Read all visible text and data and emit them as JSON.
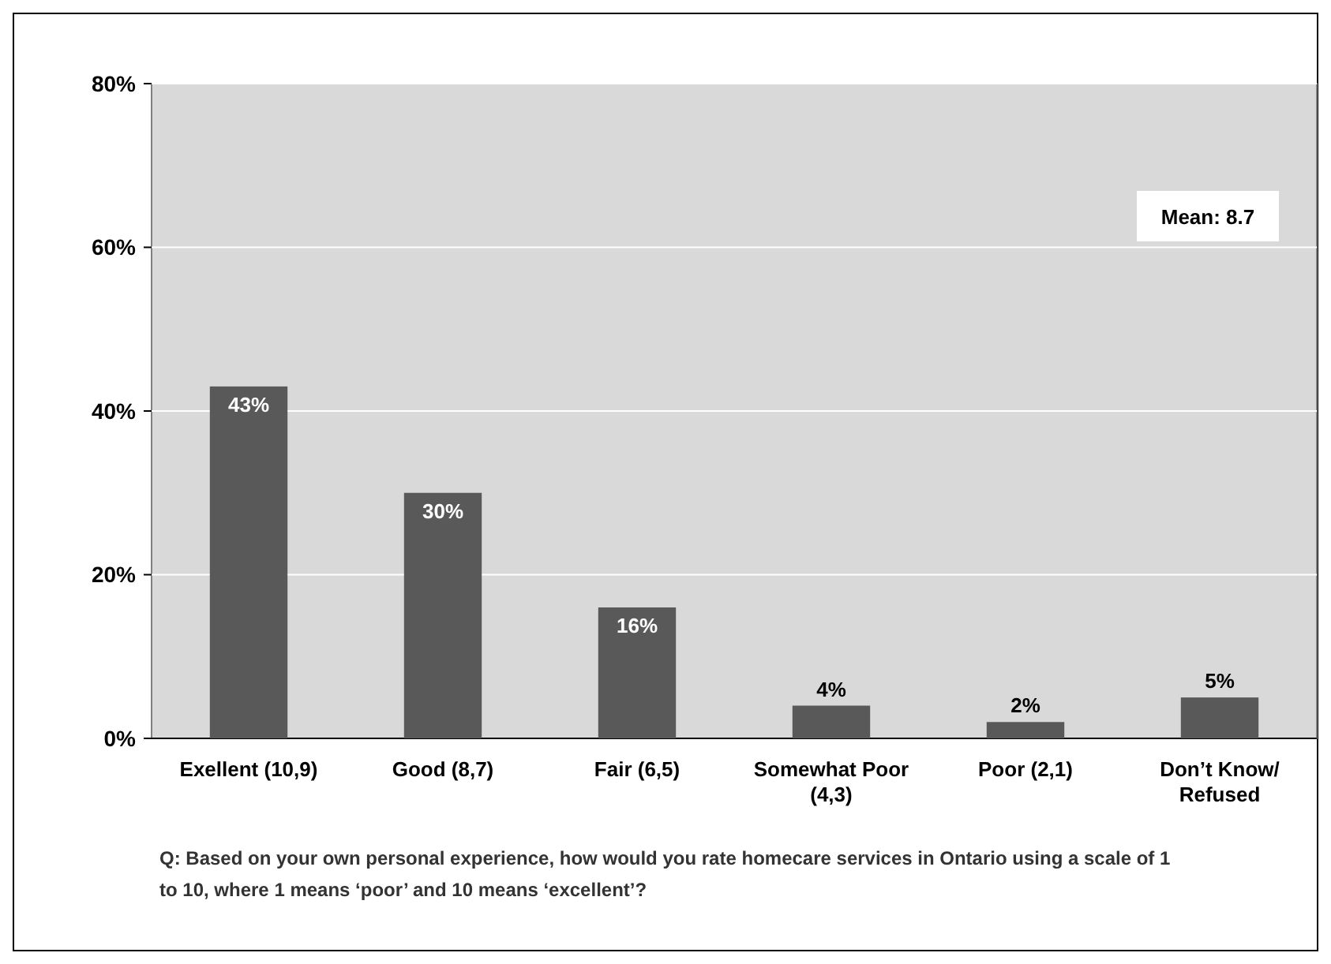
{
  "chart_data": {
    "type": "bar",
    "categories": [
      "Exellent (10,9)",
      "Good (8,7)",
      "Fair (6,5)",
      "Somewhat Poor (4,3)",
      "Poor (2,1)",
      "Don’t Know/ Refused"
    ],
    "values": [
      43,
      30,
      16,
      4,
      2,
      5
    ],
    "color": "#595959",
    "ylim": [
      0,
      80
    ],
    "yticks": [
      {
        "value": 0,
        "label": "0%"
      },
      {
        "value": 20,
        "label": "20%"
      },
      {
        "value": 40,
        "label": "40%"
      },
      {
        "value": 60,
        "label": "60%"
      },
      {
        "value": 80,
        "label": "80%"
      }
    ],
    "value_labels": [
      "43%",
      "30%",
      "16%",
      "4%",
      "2%",
      "5%"
    ],
    "grid": "y",
    "annotations": [
      "Mean: 8.7",
      "Q:  Based on your own personal experience, how would you rate homecare services in Ontario using a scale of 1 to 10, where 1 means ‘poor’ and 10 means ‘excellent’?"
    ]
  }
}
